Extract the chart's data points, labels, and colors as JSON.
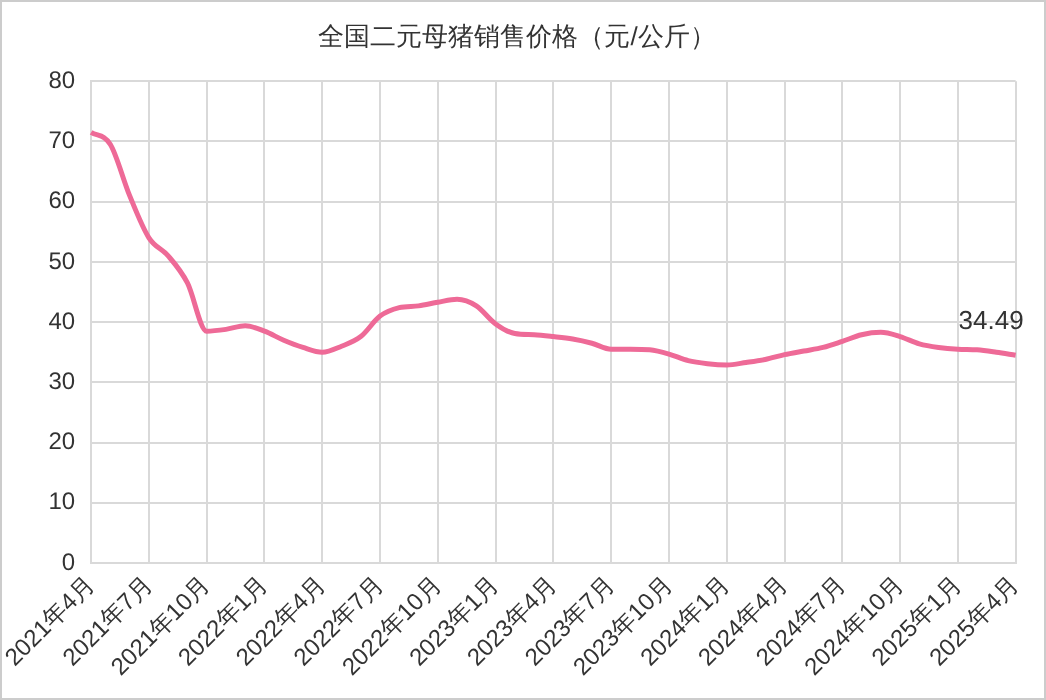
{
  "chart_data": {
    "type": "line",
    "title": "全国二元母猪销售价格（元/公斤）",
    "categories": [
      "2021年4月",
      null,
      null,
      "2021年7月",
      null,
      null,
      "2021年10月",
      null,
      null,
      "2022年1月",
      null,
      null,
      "2022年4月",
      null,
      null,
      "2022年7月",
      null,
      null,
      "2022年10月",
      null,
      null,
      "2023年1月",
      null,
      null,
      "2023年4月",
      null,
      null,
      "2023年7月",
      null,
      null,
      "2023年10月",
      null,
      null,
      "2024年1月",
      null,
      null,
      "2024年4月",
      null,
      null,
      "2024年7月",
      null,
      null,
      "2024年10月",
      null,
      null,
      "2025年1月",
      null,
      null,
      "2025年4月"
    ],
    "series": [
      {
        "color": "#ee6a97",
        "values": [
          71.5,
          69.5,
          61,
          54,
          51,
          46.5,
          38.5,
          38.8,
          39.4,
          38.5,
          37,
          35.8,
          35,
          36,
          37.6,
          41,
          42.4,
          42.7,
          43.3,
          43.8,
          42.7,
          39.7,
          38.1,
          37.9,
          37.6,
          37.2,
          36.5,
          35.5,
          35.5,
          35.4,
          34.7,
          33.6,
          33.1,
          32.9,
          33.3,
          33.8,
          34.6,
          35.2,
          35.8,
          36.8,
          37.9,
          38.3,
          37.6,
          36.4,
          35.8,
          35.5,
          35.4,
          35.0,
          34.49
        ],
        "value_labels": [
          null,
          null,
          null,
          null,
          null,
          null,
          null,
          null,
          null,
          null,
          null,
          null,
          null,
          null,
          null,
          null,
          null,
          null,
          null,
          null,
          null,
          null,
          null,
          null,
          null,
          null,
          null,
          null,
          null,
          null,
          null,
          null,
          null,
          null,
          null,
          null,
          null,
          null,
          null,
          null,
          null,
          null,
          null,
          null,
          null,
          null,
          null,
          null,
          "34.49"
        ]
      }
    ],
    "ylim": [
      0,
      80
    ],
    "yticks": [
      0,
      10,
      20,
      30,
      40,
      50,
      60,
      70,
      80
    ],
    "grid": true,
    "legend": false,
    "marker": "none",
    "line_style": "solid"
  }
}
